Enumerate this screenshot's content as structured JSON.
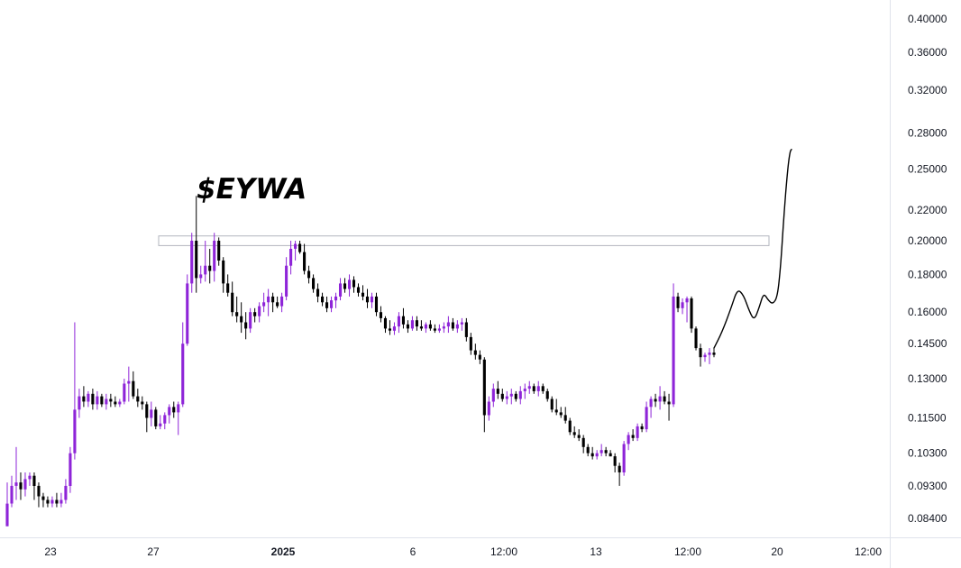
{
  "chart_data": {
    "type": "candlestick",
    "title": "$EYWA",
    "y_scale": "log",
    "ylim": [
      0.081,
      0.41
    ],
    "y_ticks": [
      "0.40000",
      "0.36000",
      "0.32000",
      "0.28000",
      "0.25000",
      "0.22000",
      "0.20000",
      "0.18000",
      "0.16000",
      "0.14500",
      "0.13000",
      "0.11500",
      "0.10300",
      "0.09300",
      "0.08400"
    ],
    "x_ticks": [
      {
        "label": "23",
        "bold": false
      },
      {
        "label": "27",
        "bold": false
      },
      {
        "label": "2025",
        "bold": true
      },
      {
        "label": "6",
        "bold": false
      },
      {
        "label": "12:00",
        "bold": false
      },
      {
        "label": "13",
        "bold": false
      },
      {
        "label": "12:00",
        "bold": false
      },
      {
        "label": "20",
        "bold": false
      },
      {
        "label": "12:00",
        "bold": false
      }
    ],
    "up_color": "#8e24d8",
    "down_color": "#000000",
    "resistance_zone": [
      0.197,
      0.203
    ],
    "candles": [
      [
        0.082,
        0.082,
        0.094,
        0.088
      ],
      [
        0.088,
        0.087,
        0.096,
        0.093
      ],
      [
        0.093,
        0.089,
        0.105,
        0.094
      ],
      [
        0.094,
        0.089,
        0.097,
        0.092
      ],
      [
        0.092,
        0.09,
        0.097,
        0.095
      ],
      [
        0.095,
        0.093,
        0.097,
        0.096
      ],
      [
        0.096,
        0.089,
        0.097,
        0.093
      ],
      [
        0.093,
        0.087,
        0.094,
        0.09
      ],
      [
        0.09,
        0.087,
        0.091,
        0.089
      ],
      [
        0.089,
        0.087,
        0.09,
        0.088
      ],
      [
        0.088,
        0.087,
        0.09,
        0.089
      ],
      [
        0.089,
        0.087,
        0.091,
        0.088
      ],
      [
        0.088,
        0.087,
        0.091,
        0.089
      ],
      [
        0.089,
        0.088,
        0.095,
        0.093
      ],
      [
        0.093,
        0.091,
        0.105,
        0.103
      ],
      [
        0.103,
        0.101,
        0.155,
        0.118
      ],
      [
        0.118,
        0.115,
        0.126,
        0.123
      ],
      [
        0.123,
        0.119,
        0.127,
        0.121
      ],
      [
        0.121,
        0.119,
        0.125,
        0.124
      ],
      [
        0.124,
        0.118,
        0.126,
        0.12
      ],
      [
        0.12,
        0.118,
        0.125,
        0.123
      ],
      [
        0.123,
        0.119,
        0.124,
        0.12
      ],
      [
        0.12,
        0.118,
        0.124,
        0.122
      ],
      [
        0.122,
        0.119,
        0.124,
        0.121
      ],
      [
        0.121,
        0.119,
        0.123,
        0.12
      ],
      [
        0.12,
        0.119,
        0.122,
        0.121
      ],
      [
        0.121,
        0.12,
        0.13,
        0.128
      ],
      [
        0.128,
        0.121,
        0.135,
        0.129
      ],
      [
        0.129,
        0.122,
        0.133,
        0.123
      ],
      [
        0.123,
        0.119,
        0.126,
        0.121
      ],
      [
        0.121,
        0.118,
        0.123,
        0.12
      ],
      [
        0.12,
        0.11,
        0.121,
        0.115
      ],
      [
        0.115,
        0.112,
        0.121,
        0.118
      ],
      [
        0.118,
        0.111,
        0.119,
        0.112
      ],
      [
        0.112,
        0.111,
        0.116,
        0.113
      ],
      [
        0.113,
        0.111,
        0.117,
        0.116
      ],
      [
        0.116,
        0.113,
        0.12,
        0.119
      ],
      [
        0.119,
        0.115,
        0.121,
        0.117
      ],
      [
        0.117,
        0.109,
        0.121,
        0.12
      ],
      [
        0.12,
        0.119,
        0.155,
        0.145
      ],
      [
        0.145,
        0.144,
        0.18,
        0.175
      ],
      [
        0.175,
        0.17,
        0.205,
        0.2
      ],
      [
        0.2,
        0.17,
        0.23,
        0.178
      ],
      [
        0.178,
        0.175,
        0.185,
        0.18
      ],
      [
        0.18,
        0.176,
        0.2,
        0.185
      ],
      [
        0.185,
        0.175,
        0.195,
        0.182
      ],
      [
        0.182,
        0.176,
        0.205,
        0.2
      ],
      [
        0.2,
        0.185,
        0.202,
        0.188
      ],
      [
        0.188,
        0.17,
        0.19,
        0.175
      ],
      [
        0.175,
        0.168,
        0.18,
        0.17
      ],
      [
        0.17,
        0.158,
        0.176,
        0.16
      ],
      [
        0.16,
        0.155,
        0.168,
        0.158
      ],
      [
        0.158,
        0.15,
        0.165,
        0.155
      ],
      [
        0.155,
        0.147,
        0.16,
        0.152
      ],
      [
        0.152,
        0.15,
        0.162,
        0.16
      ],
      [
        0.16,
        0.155,
        0.162,
        0.158
      ],
      [
        0.158,
        0.155,
        0.165,
        0.163
      ],
      [
        0.163,
        0.16,
        0.17,
        0.165
      ],
      [
        0.165,
        0.158,
        0.172,
        0.168
      ],
      [
        0.168,
        0.16,
        0.17,
        0.165
      ],
      [
        0.165,
        0.162,
        0.168,
        0.163
      ],
      [
        0.163,
        0.16,
        0.17,
        0.168
      ],
      [
        0.168,
        0.166,
        0.19,
        0.185
      ],
      [
        0.185,
        0.18,
        0.2,
        0.195
      ],
      [
        0.195,
        0.188,
        0.2,
        0.198
      ],
      [
        0.198,
        0.192,
        0.2,
        0.193
      ],
      [
        0.193,
        0.18,
        0.198,
        0.182
      ],
      [
        0.182,
        0.175,
        0.185,
        0.178
      ],
      [
        0.178,
        0.17,
        0.18,
        0.172
      ],
      [
        0.172,
        0.165,
        0.175,
        0.168
      ],
      [
        0.168,
        0.163,
        0.17,
        0.165
      ],
      [
        0.165,
        0.16,
        0.168,
        0.162
      ],
      [
        0.162,
        0.16,
        0.168,
        0.166
      ],
      [
        0.166,
        0.162,
        0.17,
        0.168
      ],
      [
        0.168,
        0.166,
        0.178,
        0.175
      ],
      [
        0.175,
        0.17,
        0.178,
        0.172
      ],
      [
        0.172,
        0.168,
        0.18,
        0.177
      ],
      [
        0.177,
        0.17,
        0.179,
        0.173
      ],
      [
        0.173,
        0.168,
        0.175,
        0.17
      ],
      [
        0.17,
        0.166,
        0.174,
        0.168
      ],
      [
        0.168,
        0.162,
        0.172,
        0.165
      ],
      [
        0.165,
        0.162,
        0.17,
        0.168
      ],
      [
        0.168,
        0.158,
        0.17,
        0.16
      ],
      [
        0.16,
        0.155,
        0.163,
        0.157
      ],
      [
        0.157,
        0.15,
        0.158,
        0.152
      ],
      [
        0.152,
        0.149,
        0.156,
        0.151
      ],
      [
        0.151,
        0.149,
        0.155,
        0.153
      ],
      [
        0.153,
        0.15,
        0.16,
        0.158
      ],
      [
        0.158,
        0.152,
        0.162,
        0.154
      ],
      [
        0.154,
        0.15,
        0.156,
        0.152
      ],
      [
        0.152,
        0.151,
        0.158,
        0.156
      ],
      [
        0.156,
        0.151,
        0.158,
        0.153
      ],
      [
        0.153,
        0.151,
        0.156,
        0.152
      ],
      [
        0.152,
        0.15,
        0.155,
        0.154
      ],
      [
        0.154,
        0.151,
        0.156,
        0.152
      ],
      [
        0.152,
        0.15,
        0.154,
        0.151
      ],
      [
        0.151,
        0.15,
        0.154,
        0.152
      ],
      [
        0.152,
        0.15,
        0.155,
        0.153
      ],
      [
        0.153,
        0.15,
        0.158,
        0.155
      ],
      [
        0.155,
        0.151,
        0.157,
        0.152
      ],
      [
        0.152,
        0.15,
        0.156,
        0.154
      ],
      [
        0.154,
        0.151,
        0.157,
        0.155
      ],
      [
        0.155,
        0.146,
        0.157,
        0.148
      ],
      [
        0.148,
        0.14,
        0.15,
        0.142
      ],
      [
        0.142,
        0.138,
        0.145,
        0.14
      ],
      [
        0.14,
        0.136,
        0.142,
        0.138
      ],
      [
        0.138,
        0.11,
        0.139,
        0.116
      ],
      [
        0.116,
        0.114,
        0.123,
        0.121
      ],
      [
        0.121,
        0.119,
        0.128,
        0.126
      ],
      [
        0.126,
        0.122,
        0.129,
        0.124
      ],
      [
        0.124,
        0.121,
        0.126,
        0.122
      ],
      [
        0.122,
        0.12,
        0.125,
        0.123
      ],
      [
        0.123,
        0.12,
        0.126,
        0.124
      ],
      [
        0.124,
        0.121,
        0.125,
        0.122
      ],
      [
        0.122,
        0.12,
        0.127,
        0.125
      ],
      [
        0.125,
        0.122,
        0.128,
        0.126
      ],
      [
        0.126,
        0.124,
        0.129,
        0.127
      ],
      [
        0.127,
        0.124,
        0.128,
        0.125
      ],
      [
        0.125,
        0.123,
        0.129,
        0.127
      ],
      [
        0.127,
        0.124,
        0.128,
        0.125
      ],
      [
        0.125,
        0.121,
        0.126,
        0.122
      ],
      [
        0.122,
        0.117,
        0.123,
        0.118
      ],
      [
        0.118,
        0.116,
        0.122,
        0.117
      ],
      [
        0.117,
        0.115,
        0.119,
        0.116
      ],
      [
        0.116,
        0.113,
        0.119,
        0.114
      ],
      [
        0.114,
        0.109,
        0.115,
        0.11
      ],
      [
        0.11,
        0.108,
        0.112,
        0.109
      ],
      [
        0.109,
        0.107,
        0.111,
        0.108
      ],
      [
        0.108,
        0.103,
        0.109,
        0.105
      ],
      [
        0.105,
        0.102,
        0.106,
        0.103
      ],
      [
        0.103,
        0.101,
        0.105,
        0.102
      ],
      [
        0.102,
        0.101,
        0.104,
        0.103
      ],
      [
        0.103,
        0.102,
        0.106,
        0.104
      ],
      [
        0.104,
        0.102,
        0.105,
        0.103
      ],
      [
        0.103,
        0.102,
        0.104,
        0.102
      ],
      [
        0.102,
        0.097,
        0.103,
        0.099
      ],
      [
        0.099,
        0.093,
        0.1,
        0.097
      ],
      [
        0.097,
        0.096,
        0.107,
        0.106
      ],
      [
        0.106,
        0.104,
        0.11,
        0.109
      ],
      [
        0.109,
        0.107,
        0.111,
        0.108
      ],
      [
        0.108,
        0.107,
        0.113,
        0.112
      ],
      [
        0.112,
        0.11,
        0.113,
        0.111
      ],
      [
        0.111,
        0.11,
        0.121,
        0.119
      ],
      [
        0.119,
        0.115,
        0.123,
        0.122
      ],
      [
        0.122,
        0.119,
        0.124,
        0.121
      ],
      [
        0.121,
        0.118,
        0.127,
        0.123
      ],
      [
        0.123,
        0.12,
        0.125,
        0.121
      ],
      [
        0.121,
        0.114,
        0.124,
        0.12
      ],
      [
        0.12,
        0.119,
        0.175,
        0.168
      ],
      [
        0.168,
        0.16,
        0.17,
        0.162
      ],
      [
        0.162,
        0.159,
        0.167,
        0.165
      ],
      [
        0.165,
        0.155,
        0.168,
        0.167
      ],
      [
        0.167,
        0.15,
        0.168,
        0.152
      ],
      [
        0.152,
        0.142,
        0.153,
        0.143
      ],
      [
        0.143,
        0.135,
        0.145,
        0.139
      ],
      [
        0.139,
        0.137,
        0.141,
        0.14
      ],
      [
        0.14,
        0.136,
        0.143,
        0.141
      ],
      [
        0.141,
        0.139,
        0.143,
        0.14
      ]
    ],
    "projection": [
      [
        0.143,
        0
      ],
      [
        0.15,
        0.1
      ],
      [
        0.162,
        0.22
      ],
      [
        0.172,
        0.3
      ],
      [
        0.169,
        0.38
      ],
      [
        0.16,
        0.46
      ],
      [
        0.156,
        0.52
      ],
      [
        0.162,
        0.58
      ],
      [
        0.17,
        0.64
      ],
      [
        0.166,
        0.7
      ],
      [
        0.164,
        0.76
      ],
      [
        0.168,
        0.82
      ],
      [
        0.185,
        0.86
      ],
      [
        0.215,
        0.9
      ],
      [
        0.25,
        0.95
      ],
      [
        0.264,
        0.98
      ],
      [
        0.266,
        1.0
      ]
    ]
  }
}
